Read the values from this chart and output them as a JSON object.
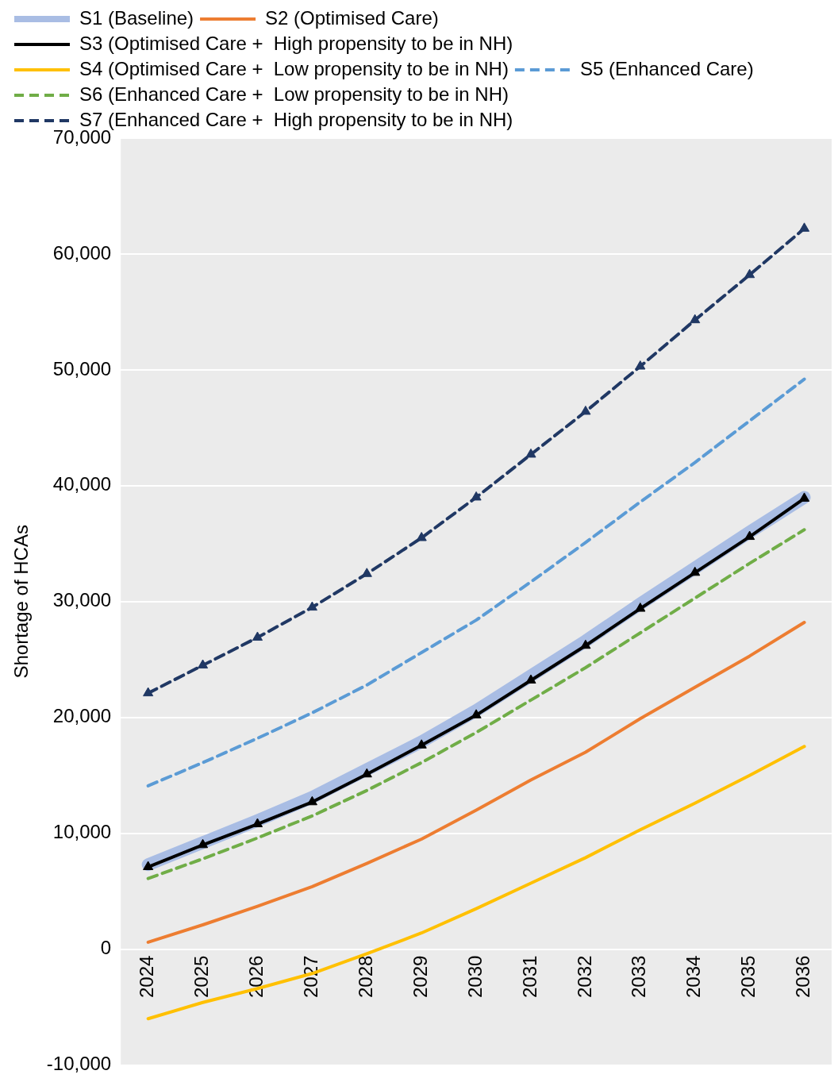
{
  "chart_data": {
    "type": "line",
    "ylabel": "Shortage of HCAs",
    "categories": [
      "2024",
      "2025",
      "2026",
      "2027",
      "2028",
      "2029",
      "2030",
      "2031",
      "2032",
      "2033",
      "2034",
      "2035",
      "2036"
    ],
    "ylim": [
      -10000,
      70000
    ],
    "yticks": [
      {
        "value": -10000,
        "label": "-10,000"
      },
      {
        "value": 0,
        "label": "0"
      },
      {
        "value": 10000,
        "label": "10,000"
      },
      {
        "value": 20000,
        "label": "20,000"
      },
      {
        "value": 30000,
        "label": "30,000"
      },
      {
        "value": 40000,
        "label": "40,000"
      },
      {
        "value": 50000,
        "label": "50,000"
      },
      {
        "value": 60000,
        "label": "60,000"
      },
      {
        "value": 70000,
        "label": "70,000"
      }
    ],
    "grid": "y",
    "legend": "top",
    "series": [
      {
        "name": "S1 (Baseline)",
        "color": "#a9bde4",
        "line_style": "solid",
        "marker": "none",
        "values": [
          7300,
          9200,
          11100,
          13100,
          15500,
          17900,
          20600,
          23600,
          26600,
          29800,
          32900,
          36000,
          39000
        ]
      },
      {
        "name": "S2 (Optimised Care)",
        "color": "#ed7d31",
        "line_style": "solid",
        "marker": "none",
        "values": [
          600,
          2100,
          3700,
          5400,
          7400,
          9500,
          12000,
          14600,
          17000,
          19900,
          22600,
          25300,
          28200
        ]
      },
      {
        "name": "S3 (Optimised Care +  High propensity to be in NH)",
        "color": "#000000",
        "line_style": "solid",
        "marker": "triangle",
        "values": [
          7100,
          9000,
          10800,
          12700,
          15100,
          17600,
          20200,
          23200,
          26200,
          29400,
          32500,
          35600,
          38900
        ]
      },
      {
        "name": "S4 (Optimised Care +  Low propensity to be in NH)",
        "color": "#ffc000",
        "line_style": "solid",
        "marker": "none",
        "values": [
          -6000,
          -4600,
          -3400,
          -2100,
          -400,
          1400,
          3500,
          5700,
          7900,
          10300,
          12600,
          15000,
          17500
        ]
      },
      {
        "name": "S5 (Enhanced Care)",
        "color": "#5b9bd5",
        "line_style": "dashed",
        "marker": "none",
        "values": [
          14100,
          16100,
          18200,
          20400,
          22800,
          25600,
          28400,
          31700,
          35100,
          38600,
          42000,
          45600,
          49200
        ]
      },
      {
        "name": "S6 (Enhanced Care +  Low propensity to be in NH)",
        "color": "#70ad47",
        "line_style": "dashed",
        "marker": "none",
        "values": [
          6100,
          7800,
          9600,
          11500,
          13700,
          16100,
          18700,
          21500,
          24300,
          27300,
          30300,
          33300,
          36200
        ]
      },
      {
        "name": "S7 (Enhanced Care +  High propensity to be in NH)",
        "color": "#203864",
        "line_style": "dashed",
        "marker": "triangle",
        "values": [
          22100,
          24500,
          26900,
          29500,
          32400,
          35500,
          39000,
          42700,
          46400,
          50300,
          54300,
          58200,
          62200
        ]
      }
    ]
  }
}
